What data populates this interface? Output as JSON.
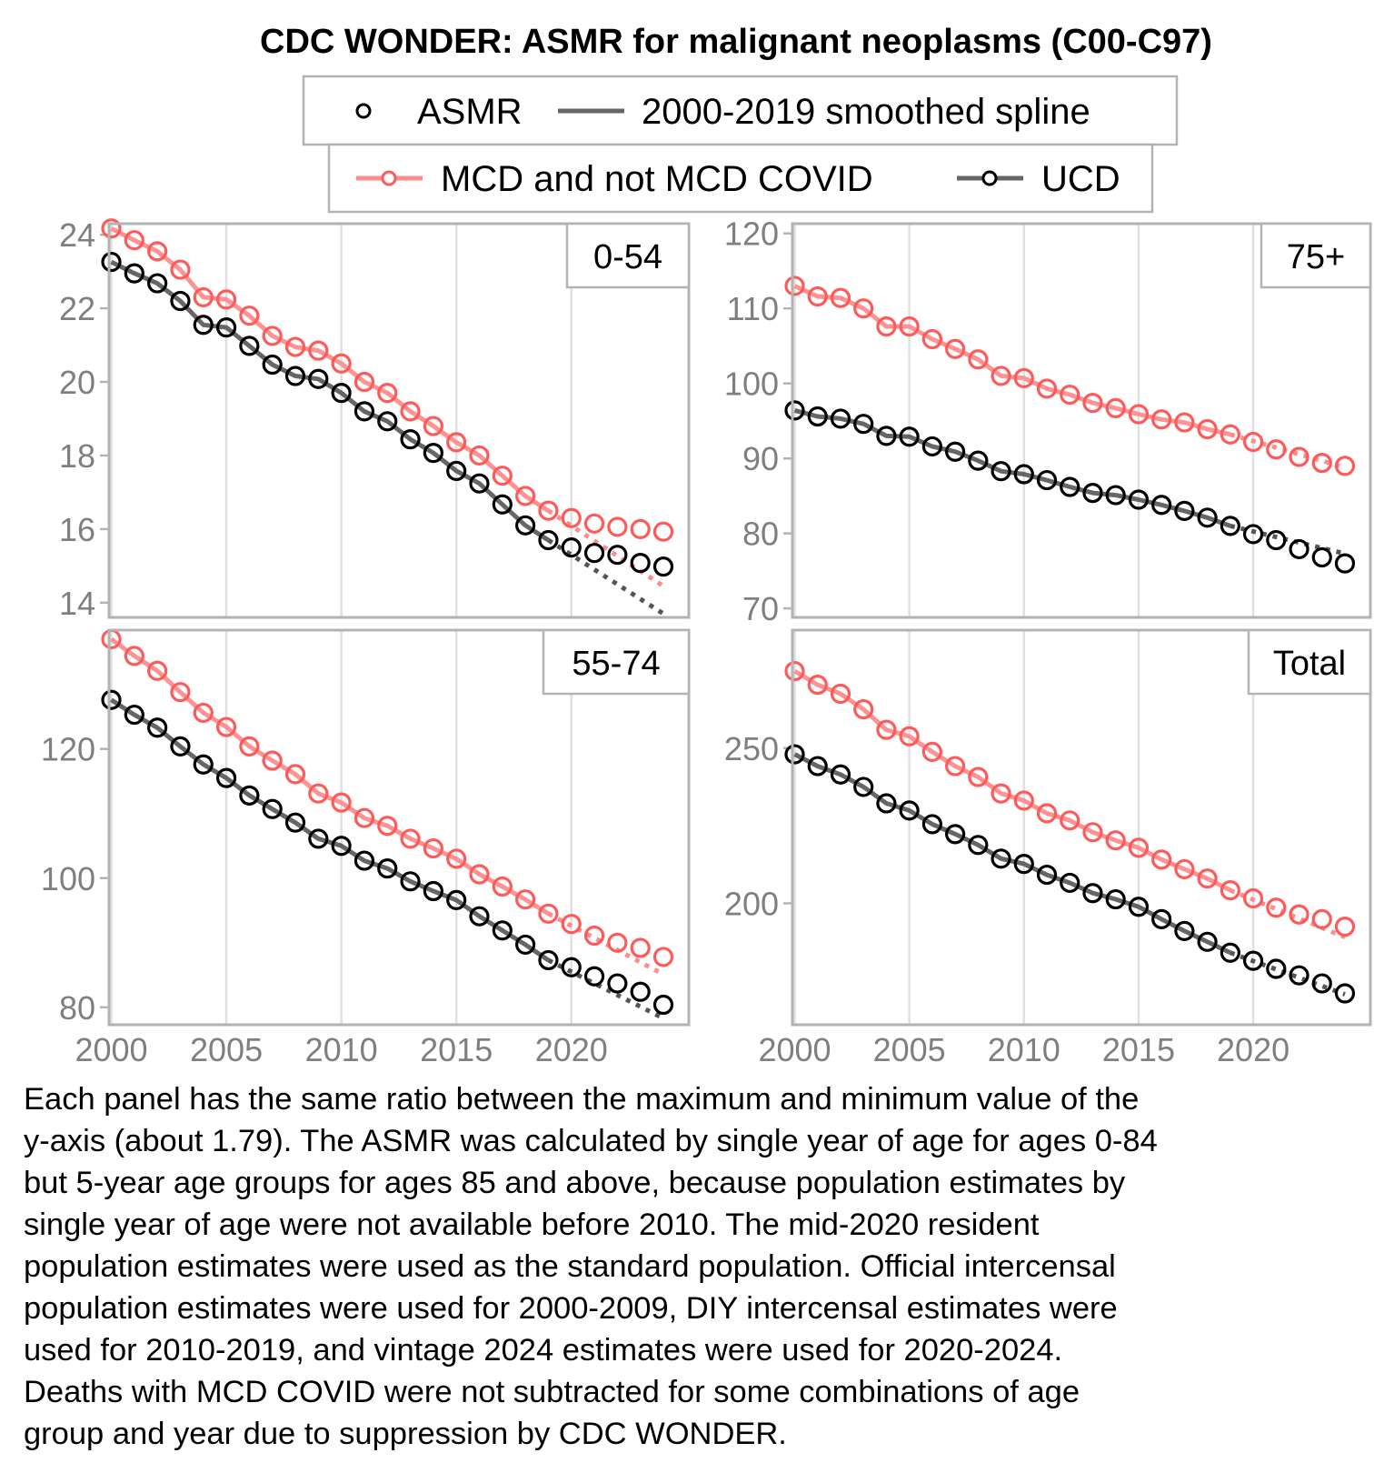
{
  "chart_data": {
    "type": "line",
    "title": "CDC WONDER: ASMR for malignant neoplasms (C00-C97)",
    "xlabel": "",
    "ylabel": "",
    "x": [
      2000,
      2001,
      2002,
      2003,
      2004,
      2005,
      2006,
      2007,
      2008,
      2009,
      2010,
      2011,
      2012,
      2013,
      2014,
      2015,
      2016,
      2017,
      2018,
      2019,
      2020,
      2021,
      2022,
      2023,
      2024
    ],
    "xlim": [
      2000,
      2024
    ],
    "x_ticks": [
      "2000",
      "2005",
      "2010",
      "2015",
      "2020"
    ],
    "grid": "vertical major gridlines",
    "legend": {
      "placement": "top",
      "row1": [
        {
          "symbol": "open-circle",
          "label": "ASMR"
        },
        {
          "symbol": "line",
          "label": "2000-2019 smoothed spline"
        }
      ],
      "row2": [
        {
          "symbol": "line-with-circle",
          "color": "#ff5a5a",
          "label": "MCD and not MCD COVID"
        },
        {
          "symbol": "line-with-circle",
          "color": "#000000",
          "label": "UCD"
        }
      ]
    },
    "colors": {
      "mcd": "#ff5a5a",
      "mcd_line": "#ff8c8c",
      "ucd": "#000000",
      "ucd_line": "#555555",
      "axis": "#b3b3b3",
      "grid": "#e0e0e0",
      "tick_text": "#7f7f7f"
    },
    "panels": [
      {
        "label": "0-54",
        "ylim": [
          13.6,
          24.3
        ],
        "y_ticks": [
          "14",
          "16",
          "18",
          "20",
          "22",
          "24"
        ],
        "series": [
          {
            "name": "MCD and not MCD COVID",
            "values": [
              24.17,
              23.85,
              23.55,
              23.05,
              22.3,
              22.24,
              21.8,
              21.25,
              20.95,
              20.85,
              20.5,
              20.0,
              19.7,
              19.2,
              18.8,
              18.36,
              18.0,
              17.45,
              16.9,
              16.5,
              16.3,
              16.15,
              16.06,
              16.0,
              15.93
            ],
            "spline_projection_2024": 14.45
          },
          {
            "name": "UCD",
            "values": [
              23.26,
              22.95,
              22.68,
              22.2,
              21.55,
              21.48,
              20.98,
              20.47,
              20.16,
              20.08,
              19.7,
              19.2,
              18.93,
              18.44,
              18.07,
              17.58,
              17.24,
              16.67,
              16.1,
              15.7,
              15.5,
              15.35,
              15.3,
              15.08,
              14.98
            ],
            "spline_projection_2024": 13.7
          }
        ]
      },
      {
        "label": "75+",
        "ylim": [
          68.8,
          121.3
        ],
        "y_ticks": [
          "70",
          "80",
          "90",
          "100",
          "110",
          "120"
        ],
        "series": [
          {
            "name": "MCD and not MCD COVID",
            "values": [
              113.0,
              111.6,
              111.4,
              110.0,
              107.6,
              107.6,
              105.9,
              104.6,
              103.2,
              101.0,
              100.7,
              99.3,
              98.5,
              97.4,
              96.7,
              95.9,
              95.2,
              94.8,
              93.9,
              93.2,
              92.2,
              91.2,
              90.2,
              89.4,
              89.0
            ],
            "spline_projection_2024": 88.8
          },
          {
            "name": "UCD",
            "values": [
              96.4,
              95.6,
              95.3,
              94.6,
              93.0,
              92.9,
              91.6,
              90.9,
              89.7,
              88.3,
              87.9,
              87.1,
              86.2,
              85.4,
              85.1,
              84.5,
              83.8,
              83.0,
              82.1,
              81.0,
              79.9,
              79.1,
              77.9,
              76.8,
              76.0
            ],
            "spline_projection_2024": 77.3
          }
        ]
      },
      {
        "label": "55-74",
        "ylim": [
          77.3,
          138.4
        ],
        "y_ticks": [
          "80",
          "100",
          "120"
        ],
        "series": [
          {
            "name": "MCD and not MCD COVID",
            "values": [
              137.0,
              134.4,
              132.1,
              128.8,
              125.6,
              123.4,
              120.4,
              118.2,
              116.1,
              113.1,
              111.7,
              109.3,
              108.1,
              106.1,
              104.6,
              103.0,
              100.6,
              98.7,
              96.7,
              94.5,
              92.9,
              91.1,
              90.0,
              89.2,
              87.8
            ],
            "spline_projection_2024": 85.1
          },
          {
            "name": "UCD",
            "values": [
              127.6,
              125.3,
              123.3,
              120.4,
              117.6,
              115.5,
              112.8,
              110.7,
              108.6,
              106.1,
              105.0,
              102.7,
              101.5,
              99.5,
              98.0,
              96.6,
              94.1,
              91.9,
              89.7,
              87.3,
              86.2,
              84.8,
              83.7,
              82.4,
              80.4
            ],
            "spline_projection_2024": 78.3
          }
        ]
      },
      {
        "label": "Total",
        "ylim": [
          160.9,
          288.0
        ],
        "y_ticks": [
          "200",
          "250"
        ],
        "series": [
          {
            "name": "MCD and not MCD COVID",
            "values": [
              274.8,
              270.4,
              267.5,
              262.5,
              255.9,
              253.8,
              248.8,
              244.2,
              240.7,
              235.4,
              233.1,
              229.0,
              226.7,
              222.9,
              220.3,
              217.9,
              214.1,
              211.0,
              208.0,
              204.2,
              201.6,
              198.6,
              196.4,
              194.9,
              192.5
            ],
            "spline_projection_2024": 189.1
          },
          {
            "name": "UCD",
            "values": [
              248.0,
              244.2,
              241.5,
              237.5,
              232.2,
              229.9,
              225.5,
              222.3,
              218.8,
              214.4,
              212.7,
              209.2,
              206.6,
              203.3,
              201.3,
              198.9,
              194.9,
              191.1,
              187.6,
              184.1,
              181.5,
              178.9,
              176.8,
              174.2,
              171.0
            ],
            "spline_projection_2024": 170.7
          }
        ]
      }
    ]
  },
  "caption": {
    "lines": [
      "Each panel has the same ratio between the maximum and minimum value of the",
      "y-axis (about 1.79). The ASMR was calculated by single year of age for ages 0-84",
      "but 5-year age groups for ages 85 and above, because population estimates by",
      "single year of age were not available before 2010. The mid-2020 resident",
      "population estimates were used as the standard population. Official intercensal",
      "population estimates were used for 2000-2009, DIY intercensal estimates were",
      "used for 2010-2019, and vintage 2024 estimates were used for 2020-2024.",
      "Deaths with MCD COVID were not subtracted for some combinations of age",
      "group and year due to suppression by CDC WONDER."
    ]
  }
}
